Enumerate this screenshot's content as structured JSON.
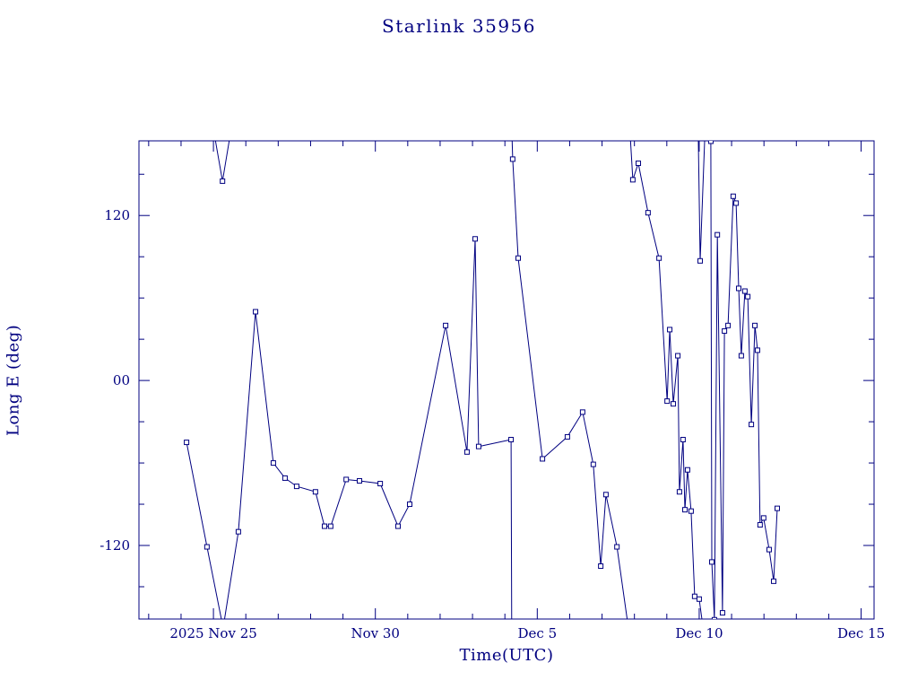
{
  "chart_data": {
    "type": "line",
    "title": "Starlink 35956",
    "xlabel": "Time(UTC)",
    "ylabel": "Long E (deg)",
    "color": "#000080",
    "marker": "open-square",
    "legend": "none",
    "grid": false,
    "x_axis": {
      "unit": "days, day 4 = 2025 Nov 25",
      "lim": [
        1.7,
        24.4
      ],
      "major_ticks": [
        {
          "day": 4,
          "label": "2025 Nov 25"
        },
        {
          "day": 9,
          "label": "Nov 30"
        },
        {
          "day": 14,
          "label": "Dec 5"
        },
        {
          "day": 19,
          "label": "Dec 10"
        },
        {
          "day": 24,
          "label": "Dec 15"
        }
      ],
      "minor_tick_interval": 1
    },
    "y_axis": {
      "lim": [
        -173.5,
        174.3
      ],
      "major_ticks": [
        {
          "value": 120,
          "label": "120"
        },
        {
          "value": 0,
          "label": "00"
        },
        {
          "value": -120,
          "label": "-120"
        }
      ],
      "minor_tick_interval": 30
    },
    "segments": [
      [
        [
          4.05,
          176
        ],
        [
          4.28,
          145
        ],
        [
          4.5,
          176
        ]
      ],
      [
        [
          3.17,
          -45
        ],
        [
          3.8,
          -121
        ],
        [
          4.3,
          -180
        ],
        [
          4.77,
          -110
        ],
        [
          5.3,
          50
        ],
        [
          5.85,
          -60
        ],
        [
          6.21,
          -71
        ],
        [
          6.57,
          -77
        ],
        [
          7.15,
          -81
        ],
        [
          7.43,
          -106
        ],
        [
          7.62,
          -106
        ],
        [
          8.1,
          -72
        ],
        [
          8.51,
          -73
        ],
        [
          9.15,
          -75
        ],
        [
          9.7,
          -106
        ],
        [
          10.06,
          -90
        ],
        [
          11.17,
          40
        ],
        [
          11.83,
          -52
        ],
        [
          12.08,
          103
        ],
        [
          12.19,
          -48
        ],
        [
          13.19,
          -43
        ],
        [
          13.21,
          -180
        ]
      ],
      [
        [
          13.22,
          178
        ],
        [
          13.24,
          161
        ],
        [
          13.41,
          89
        ],
        [
          14.16,
          -57
        ],
        [
          14.93,
          -41
        ],
        [
          15.4,
          -23
        ],
        [
          15.73,
          -61
        ],
        [
          15.96,
          -135
        ],
        [
          16.12,
          -83
        ],
        [
          16.46,
          -121
        ],
        [
          16.79,
          -176
        ]
      ],
      [
        [
          16.87,
          178
        ],
        [
          16.95,
          146
        ],
        [
          17.12,
          158
        ],
        [
          17.42,
          122
        ],
        [
          17.76,
          89
        ],
        [
          18.01,
          -15
        ],
        [
          18.09,
          37
        ],
        [
          18.2,
          -17
        ],
        [
          18.34,
          18
        ],
        [
          18.39,
          -81
        ],
        [
          18.5,
          -43
        ],
        [
          18.56,
          -94
        ],
        [
          18.64,
          -65
        ],
        [
          18.75,
          -95
        ],
        [
          18.86,
          -157
        ],
        [
          19.0,
          -159
        ],
        [
          19.11,
          -178
        ]
      ],
      [
        [
          18.97,
          178
        ],
        [
          19.03,
          87
        ],
        [
          19.17,
          176
        ],
        [
          19.36,
          174
        ],
        [
          19.39,
          -132
        ],
        [
          19.47,
          -174
        ],
        [
          19.56,
          106
        ],
        [
          19.72,
          -169
        ],
        [
          19.78,
          36
        ],
        [
          19.89,
          40
        ],
        [
          20.05,
          134
        ],
        [
          20.14,
          129
        ],
        [
          20.22,
          67
        ],
        [
          20.3,
          18
        ],
        [
          20.41,
          65
        ],
        [
          20.5,
          61
        ],
        [
          20.61,
          -32
        ],
        [
          20.72,
          40
        ],
        [
          20.8,
          22
        ],
        [
          20.88,
          -105
        ],
        [
          20.99,
          -100
        ],
        [
          21.16,
          -123
        ],
        [
          21.3,
          -146
        ],
        [
          21.41,
          -93
        ]
      ]
    ]
  }
}
